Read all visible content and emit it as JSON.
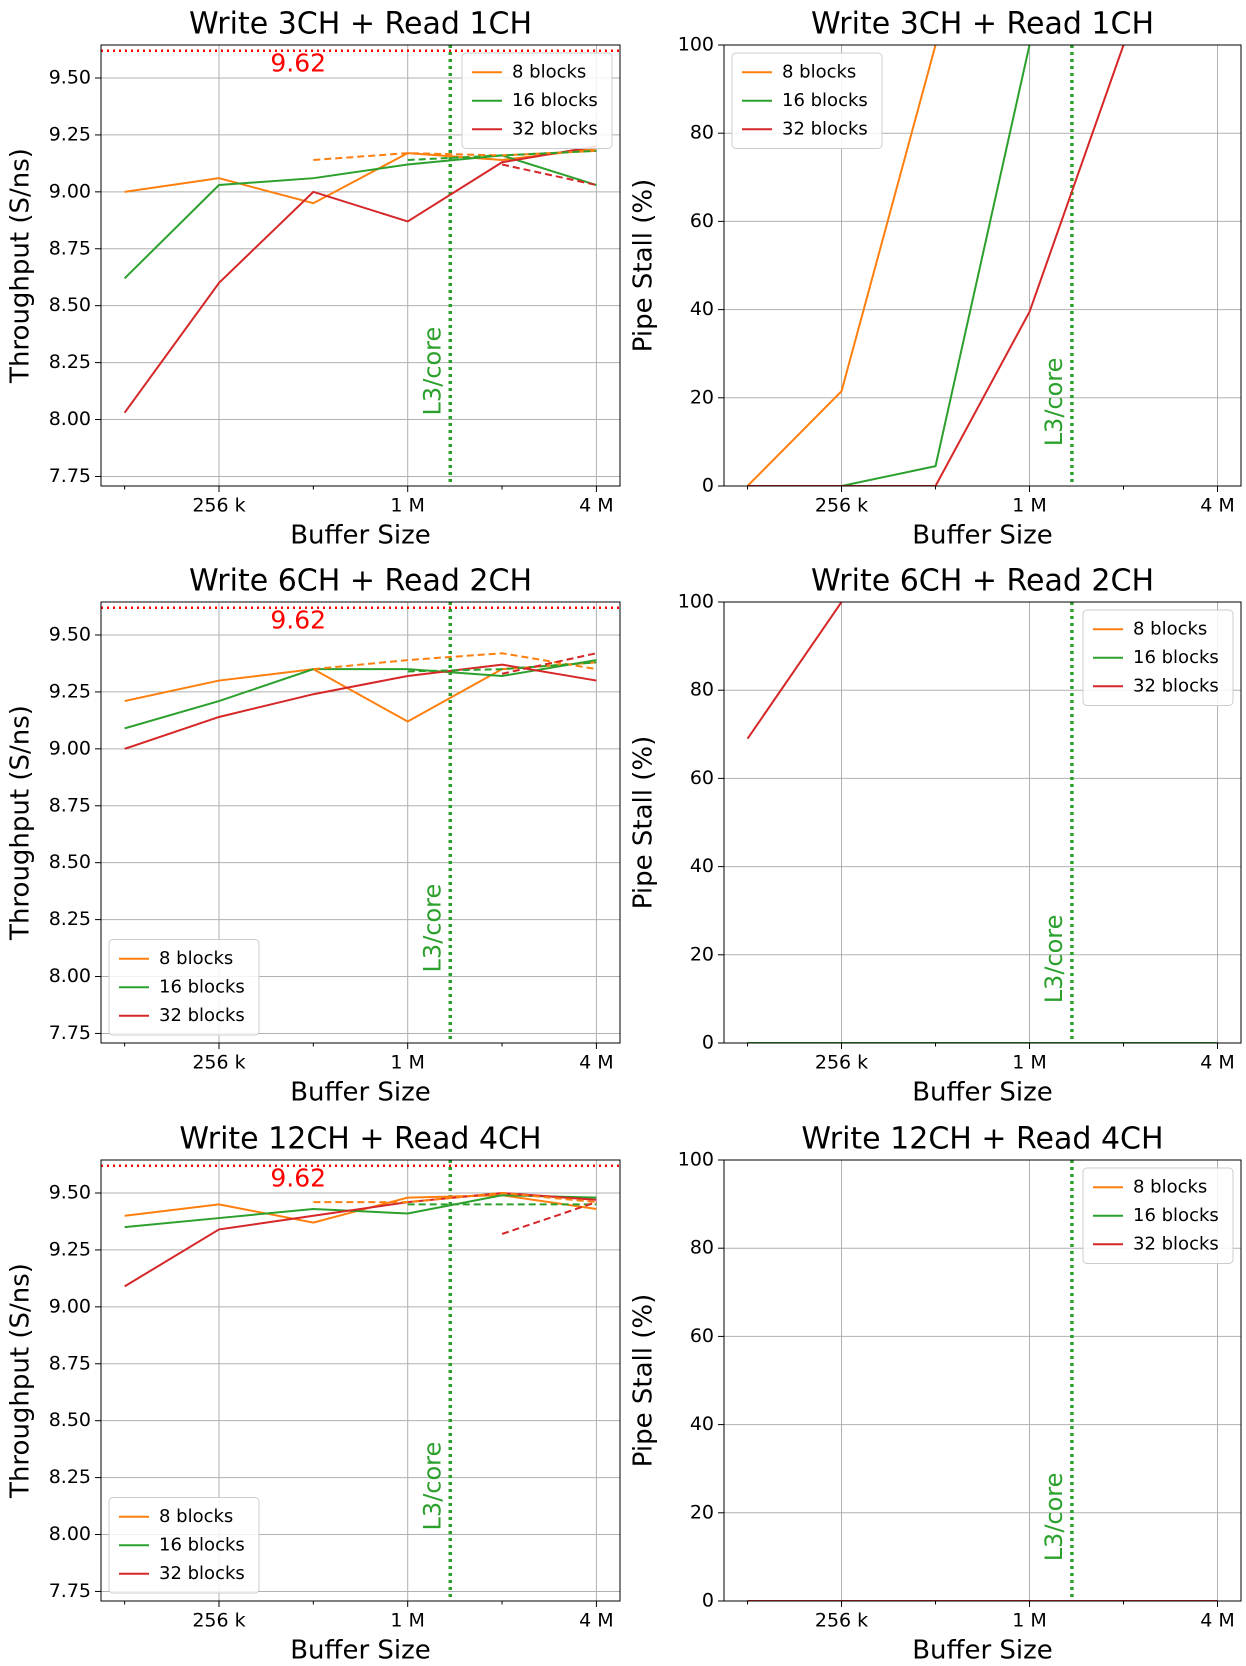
{
  "chart_data": [
    {
      "type": "line",
      "title": "Write 3CH + Read 1CH",
      "xlabel": "Buffer Size",
      "ylabel": "Throughput (S/ns)",
      "x": [
        128,
        256,
        512,
        1024,
        2048,
        4096
      ],
      "xscale": "log2",
      "xlim": [
        107.6,
        4871
      ],
      "xticks": [
        {
          "value": 256,
          "label": "256 k"
        },
        {
          "value": 1024,
          "label": "1 M"
        },
        {
          "value": 4096,
          "label": "4 M"
        }
      ],
      "xminorticks": [
        128,
        512,
        2048
      ],
      "ylim": [
        7.708,
        9.645
      ],
      "yticks": [
        7.75,
        {
          "value": 8,
          "label": "8.00"
        },
        8.25,
        {
          "value": 8.5,
          "label": "8.50"
        },
        8.75,
        {
          "value": 9,
          "label": "9.00"
        },
        9.25,
        {
          "value": 9.5,
          "label": "9.50"
        }
      ],
      "grid": true,
      "legend": "upper right",
      "hline": {
        "value": 9.62,
        "color": "red"
      },
      "vline": {
        "value": 1400,
        "label": "L3/core",
        "color": "#2ca02c"
      },
      "series": [
        {
          "name": "8 blocks",
          "color": "#ff7f0e",
          "values": [
            9.0,
            9.06,
            8.95,
            9.17,
            9.14,
            9.19
          ]
        },
        {
          "name": "16 blocks",
          "color": "#2ca02c",
          "values": [
            8.62,
            9.03,
            9.06,
            9.12,
            9.16,
            9.03
          ]
        },
        {
          "name": "32 blocks",
          "color": "#d62728",
          "values": [
            8.03,
            8.6,
            9.0,
            8.87,
            9.13,
            9.2
          ]
        },
        {
          "color": "#ff7f0e",
          "linestyle": "dashed",
          "values": [
            null,
            null,
            9.14,
            9.17,
            9.16,
            9.18
          ]
        },
        {
          "color": "#2ca02c",
          "linestyle": "dashed",
          "values": [
            null,
            null,
            null,
            9.14,
            9.16,
            9.18
          ]
        },
        {
          "color": "#d62728",
          "linestyle": "dashed",
          "values": [
            null,
            null,
            null,
            null,
            9.12,
            9.03
          ]
        }
      ]
    },
    {
      "type": "line",
      "title": "Write 3CH + Read 1CH",
      "xlabel": "Buffer Size",
      "ylabel": "Pipe Stall (%)",
      "x": [
        128,
        256,
        512,
        1024,
        2048,
        4096
      ],
      "xscale": "log2",
      "xlim": [
        107.6,
        4871
      ],
      "xticks": [
        {
          "value": 256,
          "label": "256 k"
        },
        {
          "value": 1024,
          "label": "1 M"
        },
        {
          "value": 4096,
          "label": "4 M"
        }
      ],
      "xminorticks": [
        128,
        512,
        2048
      ],
      "ylim": [
        0,
        100
      ],
      "yticks": [
        0,
        20,
        40,
        60,
        80,
        100
      ],
      "grid": true,
      "legend": "upper left",
      "vline": {
        "value": 1400,
        "label": "L3/core",
        "color": "#2ca02c"
      },
      "series": [
        {
          "name": "8 blocks",
          "color": "#ff7f0e",
          "values": [
            0,
            21.5,
            100,
            null,
            null,
            null
          ]
        },
        {
          "name": "16 blocks",
          "color": "#2ca02c",
          "values": [
            0,
            0,
            4.5,
            100,
            null,
            null
          ]
        },
        {
          "name": "32 blocks",
          "color": "#d62728",
          "values": [
            0,
            0,
            0,
            39.5,
            100,
            null
          ]
        }
      ]
    },
    {
      "type": "line",
      "title": "Write 6CH + Read 2CH",
      "xlabel": "Buffer Size",
      "ylabel": "Throughput (S/ns)",
      "x": [
        128,
        256,
        512,
        1024,
        2048,
        4096
      ],
      "xscale": "log2",
      "xlim": [
        107.6,
        4871
      ],
      "xticks": [
        {
          "value": 256,
          "label": "256 k"
        },
        {
          "value": 1024,
          "label": "1 M"
        },
        {
          "value": 4096,
          "label": "4 M"
        }
      ],
      "xminorticks": [
        128,
        512,
        2048
      ],
      "ylim": [
        7.708,
        9.645
      ],
      "yticks": [
        7.75,
        {
          "value": 8,
          "label": "8.00"
        },
        8.25,
        {
          "value": 8.5,
          "label": "8.50"
        },
        8.75,
        {
          "value": 9,
          "label": "9.00"
        },
        9.25,
        {
          "value": 9.5,
          "label": "9.50"
        }
      ],
      "grid": true,
      "legend": "lower left",
      "hline": {
        "value": 9.62,
        "color": "red"
      },
      "vline": {
        "value": 1400,
        "label": "L3/core",
        "color": "#2ca02c"
      },
      "series": [
        {
          "name": "8 blocks",
          "color": "#ff7f0e",
          "values": [
            9.21,
            9.3,
            9.35,
            9.12,
            9.35,
            9.38
          ]
        },
        {
          "name": "16 blocks",
          "color": "#2ca02c",
          "values": [
            9.09,
            9.21,
            9.35,
            9.35,
            9.32,
            9.39
          ]
        },
        {
          "name": "32 blocks",
          "color": "#d62728",
          "values": [
            9.0,
            9.14,
            9.24,
            9.32,
            9.37,
            9.3
          ]
        },
        {
          "color": "#ff7f0e",
          "linestyle": "dashed",
          "values": [
            null,
            null,
            9.35,
            9.39,
            9.42,
            9.35
          ]
        },
        {
          "color": "#2ca02c",
          "linestyle": "dashed",
          "values": [
            null,
            null,
            null,
            9.34,
            9.35,
            9.38
          ]
        },
        {
          "color": "#d62728",
          "linestyle": "dashed",
          "values": [
            null,
            null,
            null,
            null,
            9.33,
            9.42
          ]
        }
      ]
    },
    {
      "type": "line",
      "title": "Write 6CH + Read 2CH",
      "xlabel": "Buffer Size",
      "ylabel": "Pipe Stall (%)",
      "x": [
        128,
        256,
        512,
        1024,
        2048,
        4096
      ],
      "xscale": "log2",
      "xlim": [
        107.6,
        4871
      ],
      "xticks": [
        {
          "value": 256,
          "label": "256 k"
        },
        {
          "value": 1024,
          "label": "1 M"
        },
        {
          "value": 4096,
          "label": "4 M"
        }
      ],
      "xminorticks": [
        128,
        512,
        2048
      ],
      "ylim": [
        0,
        100
      ],
      "yticks": [
        0,
        20,
        40,
        60,
        80,
        100
      ],
      "grid": true,
      "legend": "upper right",
      "vline": {
        "value": 1400,
        "label": "L3/core",
        "color": "#2ca02c"
      },
      "series": [
        {
          "name": "8 blocks",
          "color": "#ff7f0e",
          "values": [
            0,
            0,
            0,
            0,
            0,
            0
          ]
        },
        {
          "name": "16 blocks",
          "color": "#2ca02c",
          "values": [
            0,
            0,
            0,
            0,
            0,
            0
          ]
        },
        {
          "name": "32 blocks",
          "color": "#d62728",
          "values": [
            69,
            100,
            null,
            null,
            null,
            null
          ]
        }
      ]
    },
    {
      "type": "line",
      "title": "Write 12CH + Read 4CH",
      "xlabel": "Buffer Size",
      "ylabel": "Throughput (S/ns)",
      "x": [
        128,
        256,
        512,
        1024,
        2048,
        4096
      ],
      "xscale": "log2",
      "xlim": [
        107.6,
        4871
      ],
      "xticks": [
        {
          "value": 256,
          "label": "256 k"
        },
        {
          "value": 1024,
          "label": "1 M"
        },
        {
          "value": 4096,
          "label": "4 M"
        }
      ],
      "xminorticks": [
        128,
        512,
        2048
      ],
      "ylim": [
        7.708,
        9.645
      ],
      "yticks": [
        7.75,
        {
          "value": 8,
          "label": "8.00"
        },
        8.25,
        {
          "value": 8.5,
          "label": "8.50"
        },
        8.75,
        {
          "value": 9,
          "label": "9.00"
        },
        9.25,
        {
          "value": 9.5,
          "label": "9.50"
        }
      ],
      "grid": true,
      "legend": "lower left",
      "hline": {
        "value": 9.62,
        "color": "red"
      },
      "vline": {
        "value": 1400,
        "label": "L3/core",
        "color": "#2ca02c"
      },
      "series": [
        {
          "name": "8 blocks",
          "color": "#ff7f0e",
          "values": [
            9.4,
            9.45,
            9.37,
            9.48,
            9.49,
            9.43
          ]
        },
        {
          "name": "16 blocks",
          "color": "#2ca02c",
          "values": [
            9.35,
            9.39,
            9.43,
            9.41,
            9.49,
            9.48
          ]
        },
        {
          "name": "32 blocks",
          "color": "#d62728",
          "values": [
            9.09,
            9.34,
            9.4,
            9.46,
            9.5,
            9.47
          ]
        },
        {
          "color": "#ff7f0e",
          "linestyle": "dashed",
          "values": [
            null,
            null,
            9.46,
            9.46,
            9.5,
            9.46
          ]
        },
        {
          "color": "#2ca02c",
          "linestyle": "dashed",
          "values": [
            null,
            null,
            null,
            9.45,
            9.45,
            9.45
          ]
        },
        {
          "color": "#d62728",
          "linestyle": "dashed",
          "values": [
            null,
            null,
            null,
            null,
            9.32,
            9.46
          ]
        }
      ]
    },
    {
      "type": "line",
      "title": "Write 12CH + Read 4CH",
      "xlabel": "Buffer Size",
      "ylabel": "Pipe Stall (%)",
      "x": [
        128,
        256,
        512,
        1024,
        2048,
        4096
      ],
      "xscale": "log2",
      "xlim": [
        107.6,
        4871
      ],
      "xticks": [
        {
          "value": 256,
          "label": "256 k"
        },
        {
          "value": 1024,
          "label": "1 M"
        },
        {
          "value": 4096,
          "label": "4 M"
        }
      ],
      "xminorticks": [
        128,
        512,
        2048
      ],
      "ylim": [
        0,
        100
      ],
      "yticks": [
        0,
        20,
        40,
        60,
        80,
        100
      ],
      "grid": true,
      "legend": "upper right",
      "vline": {
        "value": 1400,
        "label": "L3/core",
        "color": "#2ca02c"
      },
      "series": [
        {
          "name": "8 blocks",
          "color": "#ff7f0e",
          "values": [
            0,
            0,
            0,
            0,
            0,
            0
          ]
        },
        {
          "name": "16 blocks",
          "color": "#2ca02c",
          "values": [
            0,
            0,
            0,
            0,
            0,
            0
          ]
        },
        {
          "name": "32 blocks",
          "color": "#d62728",
          "values": [
            0,
            0,
            0,
            0,
            0,
            0
          ]
        }
      ]
    }
  ]
}
